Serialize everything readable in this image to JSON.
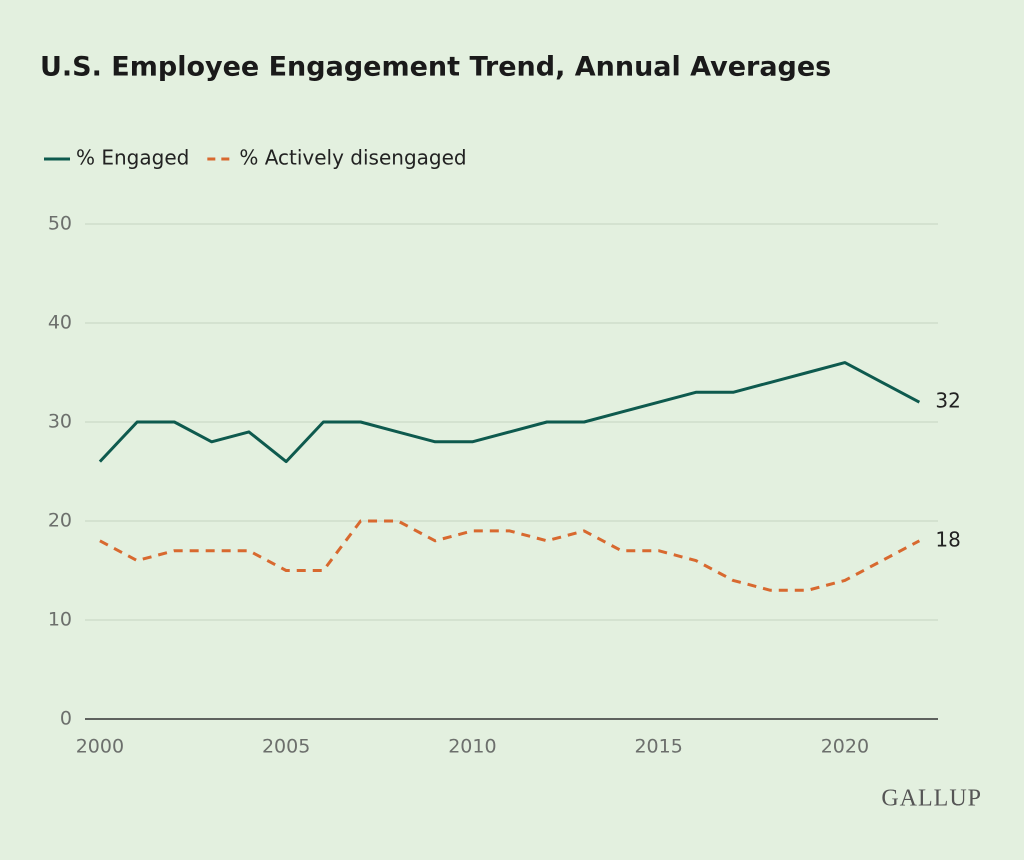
{
  "chart_data": {
    "type": "line",
    "title": "U.S. Employee Engagement Trend, Annual Averages",
    "x": [
      2000,
      2001,
      2002,
      2003,
      2004,
      2005,
      2006,
      2007,
      2008,
      2009,
      2010,
      2011,
      2012,
      2013,
      2014,
      2015,
      2016,
      2017,
      2018,
      2019,
      2020,
      2021,
      2022
    ],
    "series": [
      {
        "name": "% Engaged",
        "color": "#0e5a4e",
        "line_style": "solid",
        "values": [
          26,
          30,
          30,
          28,
          29,
          26,
          30,
          30,
          29,
          28,
          28,
          29,
          30,
          30,
          31,
          32,
          33,
          33,
          34,
          35,
          36,
          34,
          32
        ]
      },
      {
        "name": "% Actively disengaged",
        "color": "#d8692f",
        "line_style": "dashed",
        "values": [
          18,
          16,
          17,
          17,
          17,
          15,
          15,
          20,
          20,
          18,
          19,
          19,
          18,
          19,
          17,
          17,
          16,
          14,
          13,
          13,
          14,
          16,
          18
        ]
      }
    ],
    "xlim": [
      1999.6,
      2022.5
    ],
    "xticks": [
      2000,
      2005,
      2010,
      2015,
      2020
    ],
    "ylim": [
      0,
      50
    ],
    "yticks": [
      0,
      10,
      20,
      30,
      40,
      50
    ],
    "grid": true,
    "legend": "top-left",
    "logo": "GALLUP"
  }
}
